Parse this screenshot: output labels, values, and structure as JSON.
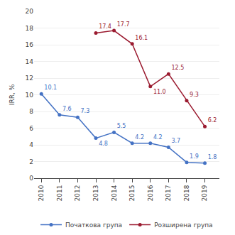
{
  "chart_data": {
    "type": "line",
    "x": [
      2010,
      2011,
      2012,
      2013,
      2014,
      2015,
      2016,
      2017,
      2018,
      2019
    ],
    "series": [
      {
        "name": "Початкова група",
        "color": "#4472c4",
        "values": [
          10.1,
          7.6,
          7.3,
          4.8,
          5.5,
          4.2,
          4.2,
          3.7,
          1.9,
          1.8
        ]
      },
      {
        "name": "Розширена група",
        "color": "#9b1b30",
        "values": [
          null,
          null,
          null,
          17.4,
          17.7,
          16.1,
          11.0,
          12.5,
          9.3,
          6.2
        ],
        "value_labels": [
          null,
          null,
          null,
          "17.4",
          "17.7",
          "16.1",
          "11.0",
          "12.5",
          "9.3",
          "6.2"
        ]
      }
    ],
    "ylabel": "IRR, %",
    "xlim": [
      2009.6,
      2019.8
    ],
    "xticks": [
      2010,
      2011,
      2012,
      2013,
      2014,
      2015,
      2016,
      2017,
      2018,
      2019
    ],
    "ylim": [
      0,
      20
    ],
    "yticks": [
      0,
      2,
      4,
      6,
      8,
      10,
      12,
      14,
      16,
      18,
      20
    ],
    "grid": true,
    "legend": "bottom",
    "data_labels": true,
    "marker": "circle"
  }
}
